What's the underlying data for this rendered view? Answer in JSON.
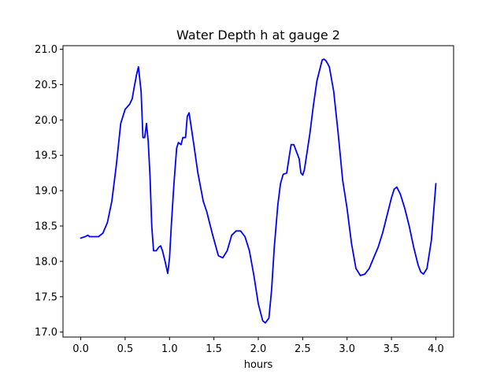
{
  "chart_data": {
    "type": "line",
    "title": "Water Depth h at gauge 2",
    "xlabel": "hours",
    "ylabel": "",
    "xlim": [
      -0.2,
      4.2
    ],
    "ylim": [
      16.93,
      21.05
    ],
    "xticks": [
      "0.0",
      "0.5",
      "1.0",
      "1.5",
      "2.0",
      "2.5",
      "3.0",
      "3.5",
      "4.0"
    ],
    "yticks": [
      "17.0",
      "17.5",
      "18.0",
      "18.5",
      "19.0",
      "19.5",
      "20.0",
      "20.5",
      "21.0"
    ],
    "grid": false,
    "series": [
      {
        "color": "#0000ff",
        "x": [
          0.0,
          0.05,
          0.08,
          0.1,
          0.2,
          0.25,
          0.3,
          0.35,
          0.4,
          0.45,
          0.5,
          0.55,
          0.58,
          0.6,
          0.63,
          0.65,
          0.68,
          0.7,
          0.72,
          0.74,
          0.76,
          0.78,
          0.8,
          0.82,
          0.85,
          0.88,
          0.9,
          0.92,
          0.95,
          0.98,
          1.0,
          1.02,
          1.05,
          1.08,
          1.1,
          1.13,
          1.15,
          1.18,
          1.2,
          1.22,
          1.25,
          1.28,
          1.32,
          1.38,
          1.42,
          1.48,
          1.55,
          1.6,
          1.65,
          1.7,
          1.75,
          1.8,
          1.85,
          1.9,
          1.95,
          2.0,
          2.05,
          2.08,
          2.12,
          2.15,
          2.18,
          2.22,
          2.25,
          2.28,
          2.32,
          2.35,
          2.37,
          2.4,
          2.43,
          2.46,
          2.48,
          2.5,
          2.52,
          2.55,
          2.58,
          2.62,
          2.66,
          2.7,
          2.72,
          2.74,
          2.76,
          2.78,
          2.8,
          2.85,
          2.9,
          2.95,
          3.0,
          3.05,
          3.1,
          3.15,
          3.2,
          3.25,
          3.3,
          3.35,
          3.4,
          3.45,
          3.5,
          3.53,
          3.56,
          3.6,
          3.65,
          3.7,
          3.75,
          3.8,
          3.83,
          3.86,
          3.9,
          3.95,
          4.0
        ],
        "y": [
          18.33,
          18.35,
          18.37,
          18.35,
          18.35,
          18.4,
          18.55,
          18.85,
          19.35,
          19.95,
          20.15,
          20.22,
          20.3,
          20.45,
          20.65,
          20.75,
          20.4,
          19.75,
          19.75,
          19.95,
          19.7,
          19.2,
          18.5,
          18.15,
          18.15,
          18.2,
          18.22,
          18.15,
          18.0,
          17.83,
          18.05,
          18.5,
          19.1,
          19.6,
          19.68,
          19.65,
          19.75,
          19.75,
          20.05,
          20.1,
          19.85,
          19.6,
          19.25,
          18.85,
          18.7,
          18.4,
          18.08,
          18.05,
          18.15,
          18.37,
          18.43,
          18.43,
          18.35,
          18.15,
          17.8,
          17.4,
          17.16,
          17.13,
          17.2,
          17.6,
          18.2,
          18.8,
          19.1,
          19.23,
          19.25,
          19.5,
          19.65,
          19.65,
          19.55,
          19.45,
          19.25,
          19.22,
          19.3,
          19.55,
          19.8,
          20.2,
          20.55,
          20.75,
          20.85,
          20.86,
          20.84,
          20.8,
          20.75,
          20.4,
          19.8,
          19.15,
          18.75,
          18.25,
          17.9,
          17.8,
          17.82,
          17.9,
          18.05,
          18.2,
          18.4,
          18.65,
          18.9,
          19.02,
          19.05,
          18.95,
          18.75,
          18.5,
          18.2,
          17.95,
          17.85,
          17.82,
          17.9,
          18.3,
          19.1
        ]
      }
    ]
  }
}
